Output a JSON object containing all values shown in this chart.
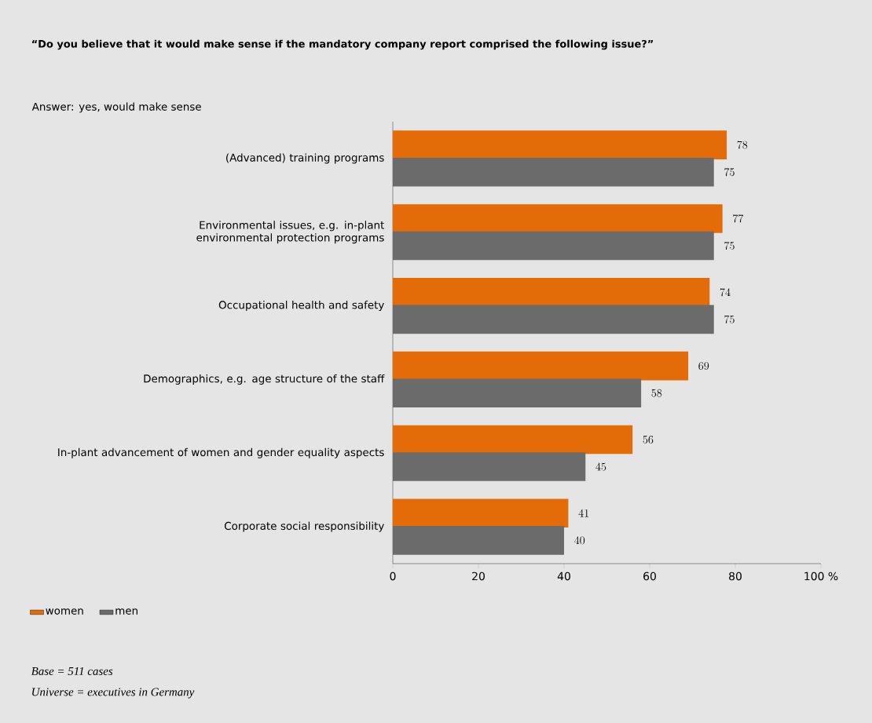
{
  "chart_data": {
    "type": "bar",
    "orientation": "horizontal",
    "title": "“Do you believe that it would make sense if the mandatory company report comprised the following issue?”",
    "subtitle": "Answer: yes, would make sense",
    "categories": [
      "(Advanced) training programs",
      "Environmental issues, e.g. in-plant environmental protection programs",
      "Occupational health and safety",
      "Demographics, e.g. age structure of the staff",
      "In-plant advancement of women and gender equality aspects",
      "Corporate social responsibility"
    ],
    "series": [
      {
        "name": "women",
        "color": "#e36c09",
        "values": [
          78,
          77,
          74,
          69,
          56,
          41
        ]
      },
      {
        "name": "men",
        "color": "#6b6b6b",
        "values": [
          75,
          75,
          75,
          58,
          45,
          40
        ]
      }
    ],
    "xlim": [
      0,
      100
    ],
    "xticks": [
      0,
      20,
      40,
      60,
      80,
      {
        "value": 100,
        "label": "100 %"
      }
    ],
    "data_labels": true,
    "grid": false,
    "legend": "bottom",
    "annotations": [
      "Base = 511 cases",
      "Universe = executives in Germany"
    ]
  }
}
